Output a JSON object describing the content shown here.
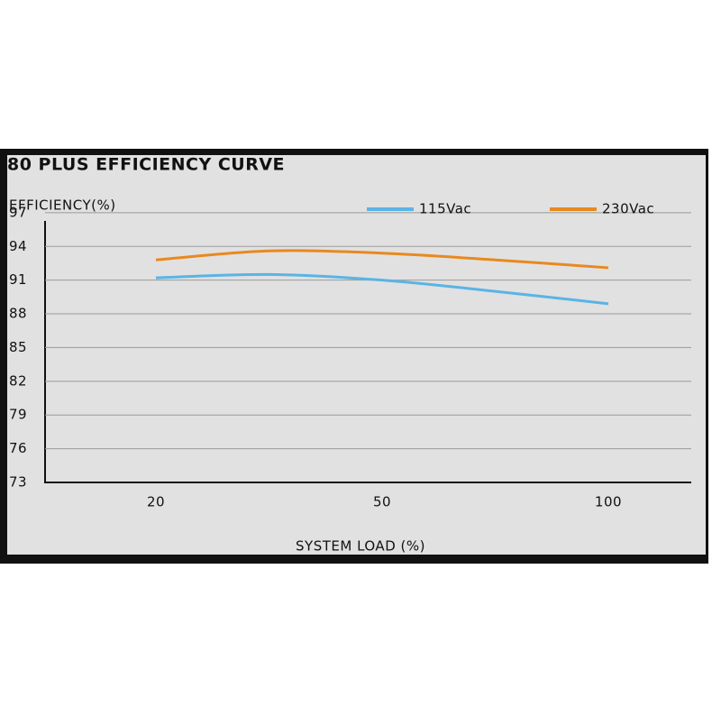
{
  "chart_data": {
    "type": "line",
    "title": "80 PLUS EFFICIENCY CURVE",
    "y_label": "EFFICIENCY(%)",
    "x_label": "SYSTEM LOAD (%)",
    "categories": [
      "20",
      null,
      "50",
      null,
      "100"
    ],
    "series": [
      {
        "name": "115Vac",
        "color": "#5ab4e5",
        "values": [
          91.2,
          91.5,
          91.0,
          90.0,
          88.9
        ]
      },
      {
        "name": "230Vac",
        "color": "#e8891f",
        "values": [
          92.8,
          93.6,
          93.4,
          92.8,
          92.1
        ]
      }
    ],
    "ylim": [
      73,
      98
    ],
    "yticks": [
      73,
      76,
      79,
      82,
      85,
      88,
      91,
      94,
      97
    ],
    "grid": true
  }
}
